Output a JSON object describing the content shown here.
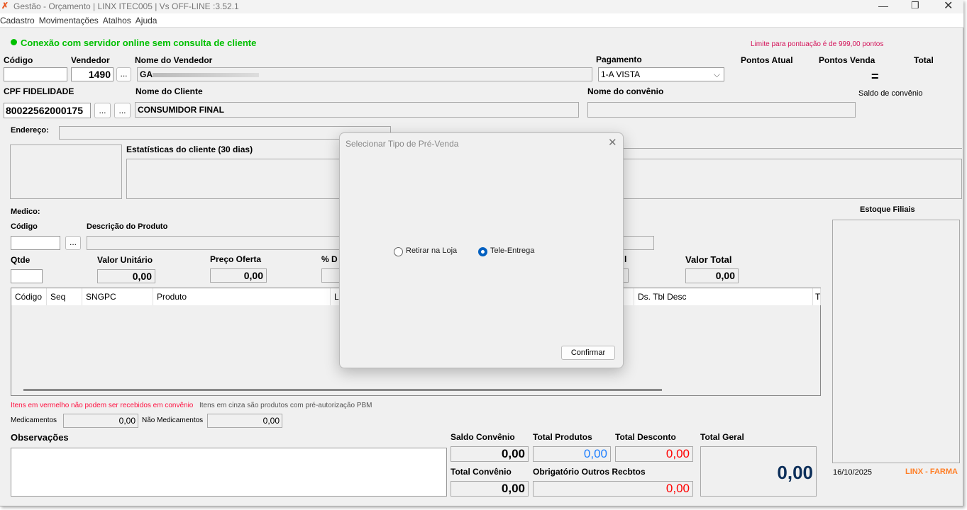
{
  "window": {
    "title": "Gestão - Orçamento  | LINX ITEC005 | Vs OFF-LINE :3.52.1",
    "logo_icon": "linx-logo-icon"
  },
  "menu": [
    "Cadastro",
    "Movimentações",
    "Atalhos",
    "Ajuda"
  ],
  "status": {
    "text": "Conexão com servidor online sem consulta de cliente",
    "color": "#00c000",
    "limit_text": "Limite para pontuação é de 999,00 pontos"
  },
  "vendedor": {
    "codigo_label": "Código",
    "codigo_value": "",
    "vendedor_label": "Vendedor",
    "vendedor_value": "1490",
    "nome_label": "Nome do Vendedor",
    "nome_value": "GA"
  },
  "pagamento": {
    "label": "Pagamento",
    "value": "1-A VISTA"
  },
  "pontos": {
    "atual_label": "Pontos Atual",
    "venda_label": "Pontos Venda",
    "total_label": "Total",
    "equals": "=",
    "saldo_label": "Saldo de convênio"
  },
  "cliente": {
    "cpf_label": "CPF FIDELIDADE",
    "cpf_value": "80022562000175",
    "nome_label": "Nome do Cliente",
    "nome_value": "CONSUMIDOR FINAL",
    "convenio_label": "Nome do convênio",
    "convenio_value": "",
    "endereco_label": "Endereço:",
    "estatisticas_label": "Estatísticas do cliente  (30 dias)"
  },
  "produto": {
    "medico_label": "Medico:",
    "codigo_label": "Código",
    "descricao_label": "Descrição do Produto",
    "qtde_label": "Qtde",
    "valor_unitario_label": "Valor Unitário",
    "valor_unitario": "0,00",
    "preco_oferta_label": "Preço Oferta",
    "preco_oferta": "0,00",
    "desc_label_partial": "% D",
    "partial_label2": "l",
    "valor_total_label": "Valor Total",
    "valor_total": "0,00",
    "ellipsis": "..."
  },
  "table": {
    "columns": [
      "Código",
      "Seq",
      "SNGPC",
      "Produto",
      "LC",
      "Ds. Tbl Desc",
      "T"
    ]
  },
  "legend": {
    "red_text": "Itens em vermelho não podem ser recebidos em convênio",
    "gray_text": "Itens em cinza são produtos com pré-autorização PBM"
  },
  "med": {
    "med_label": "Medicamentos",
    "med_value": "0,00",
    "nao_med_label": "Não Medicamentos",
    "nao_med_value": "0,00"
  },
  "obs_label": "Observações",
  "totais": {
    "saldo_convenio_label": "Saldo Convênio",
    "saldo_convenio": "0,00",
    "total_produtos_label": "Total Produtos",
    "total_produtos": "0,00",
    "total_desconto_label": "Total Desconto",
    "total_desconto": "0,00",
    "total_geral_label": "Total Geral",
    "total_geral": "0,00",
    "total_convenio_label": "Total Convênio",
    "total_convenio": "0,00",
    "outros_label": "Obrigatório Outros Recbtos",
    "outros": "0,00"
  },
  "estoque": {
    "label": "Estoque Filiais",
    "date": "16/10/2025",
    "brand": "LINX - FARMA",
    "brand_color": "#ff7f27"
  },
  "dialog": {
    "title": "Selecionar Tipo de Pré-Venda",
    "options": [
      {
        "label": "Retirar na Loja",
        "selected": false
      },
      {
        "label": "Tele-Entrega",
        "selected": true
      }
    ],
    "confirm": "Confirmar"
  }
}
